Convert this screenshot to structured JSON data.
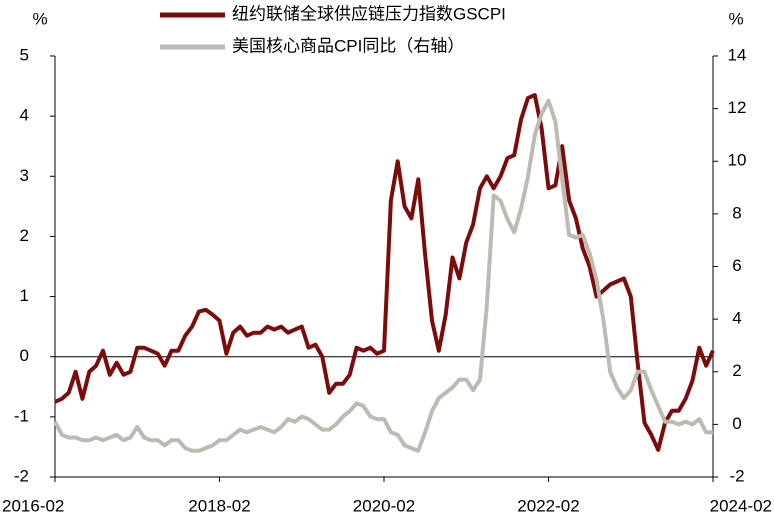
{
  "chart_data": {
    "type": "line",
    "y_unit": "%",
    "y2_unit": "%",
    "x": [
      "2016-02",
      "2016-03",
      "2016-04",
      "2016-05",
      "2016-06",
      "2016-07",
      "2016-08",
      "2016-09",
      "2016-10",
      "2016-11",
      "2016-12",
      "2017-01",
      "2017-02",
      "2017-03",
      "2017-04",
      "2017-05",
      "2017-06",
      "2017-07",
      "2017-08",
      "2017-09",
      "2017-10",
      "2017-11",
      "2017-12",
      "2018-01",
      "2018-02",
      "2018-03",
      "2018-04",
      "2018-05",
      "2018-06",
      "2018-07",
      "2018-08",
      "2018-09",
      "2018-10",
      "2018-11",
      "2018-12",
      "2019-01",
      "2019-02",
      "2019-03",
      "2019-04",
      "2019-05",
      "2019-06",
      "2019-07",
      "2019-08",
      "2019-09",
      "2019-10",
      "2019-11",
      "2019-12",
      "2020-01",
      "2020-02",
      "2020-03",
      "2020-04",
      "2020-05",
      "2020-06",
      "2020-07",
      "2020-08",
      "2020-09",
      "2020-10",
      "2020-11",
      "2020-12",
      "2021-01",
      "2021-02",
      "2021-03",
      "2021-04",
      "2021-05",
      "2021-06",
      "2021-07",
      "2021-08",
      "2021-09",
      "2021-10",
      "2021-11",
      "2021-12",
      "2022-01",
      "2022-02",
      "2022-03",
      "2022-04",
      "2022-05",
      "2022-06",
      "2022-07",
      "2022-08",
      "2022-09",
      "2022-10",
      "2022-11",
      "2022-12",
      "2023-01",
      "2023-02",
      "2023-03",
      "2023-04",
      "2023-05",
      "2023-06",
      "2023-07",
      "2023-08",
      "2023-09",
      "2023-10",
      "2023-11",
      "2023-12",
      "2024-01",
      "2024-02"
    ],
    "xticks": [
      "2016-02",
      "2018-02",
      "2020-02",
      "2022-02",
      "2024-02"
    ],
    "series": [
      {
        "name": "纽约联储全球供应链压力指数GSCPI",
        "color": "#7b0c0c",
        "axis": "y",
        "values": [
          -0.75,
          -0.7,
          -0.6,
          -0.25,
          -0.7,
          -0.25,
          -0.15,
          0.1,
          -0.3,
          -0.1,
          -0.3,
          -0.25,
          0.15,
          0.15,
          0.1,
          0.05,
          -0.15,
          0.1,
          0.1,
          0.35,
          0.5,
          0.75,
          0.78,
          0.7,
          0.6,
          0.05,
          0.4,
          0.5,
          0.35,
          0.4,
          0.4,
          0.5,
          0.45,
          0.5,
          0.4,
          0.45,
          0.5,
          0.15,
          0.2,
          0.0,
          -0.6,
          -0.45,
          -0.45,
          -0.3,
          0.15,
          0.1,
          0.15,
          0.05,
          0.1,
          2.6,
          3.25,
          2.5,
          2.3,
          2.95,
          1.7,
          0.6,
          0.1,
          0.7,
          1.65,
          1.3,
          1.9,
          2.2,
          2.8,
          3.0,
          2.8,
          3.0,
          3.3,
          3.35,
          3.95,
          4.3,
          4.35,
          3.8,
          2.8,
          2.85,
          3.5,
          2.6,
          2.3,
          1.8,
          1.5,
          1.0,
          1.1,
          1.2,
          1.25,
          1.3,
          1.0,
          -0.1,
          -1.1,
          -1.3,
          -1.55,
          -1.1,
          -0.9,
          -0.9,
          -0.7,
          -0.4,
          0.15,
          -0.15,
          0.1
        ]
      },
      {
        "name": "美国核心商品CPI同比（右轴）",
        "color": "#bdbab0",
        "axis": "y2",
        "values": [
          0.1,
          -0.4,
          -0.5,
          -0.5,
          -0.6,
          -0.6,
          -0.5,
          -0.6,
          -0.5,
          -0.4,
          -0.6,
          -0.5,
          -0.1,
          -0.5,
          -0.6,
          -0.6,
          -0.8,
          -0.6,
          -0.6,
          -0.9,
          -1.0,
          -1.0,
          -0.9,
          -0.8,
          -0.6,
          -0.6,
          -0.4,
          -0.2,
          -0.3,
          -0.2,
          -0.1,
          -0.2,
          -0.3,
          -0.1,
          0.2,
          0.1,
          0.3,
          0.2,
          0.0,
          -0.2,
          -0.2,
          0.0,
          0.3,
          0.5,
          0.8,
          0.7,
          0.3,
          0.2,
          0.2,
          -0.3,
          -0.4,
          -0.8,
          -0.9,
          -1.0,
          -0.3,
          0.5,
          1.0,
          1.2,
          1.4,
          1.7,
          1.7,
          1.3,
          1.7,
          4.5,
          8.7,
          8.5,
          7.8,
          7.3,
          8.2,
          9.4,
          11.0,
          11.8,
          12.3,
          11.5,
          9.3,
          7.2,
          7.1,
          7.2,
          6.5,
          5.5,
          4.0,
          2.0,
          1.4,
          1.0,
          1.3,
          2.0,
          2.0,
          1.3,
          0.7,
          0.1,
          0.1,
          0.0,
          0.1,
          0.0,
          0.2,
          -0.3,
          -0.3
        ]
      }
    ],
    "ylim": [
      -2,
      5
    ],
    "yticks": [
      -2,
      -1,
      0,
      1,
      2,
      3,
      4,
      5
    ],
    "y2lim": [
      -2,
      14
    ],
    "y2ticks": [
      -2,
      0,
      2,
      4,
      6,
      8,
      10,
      12,
      14
    ],
    "legend": "top"
  }
}
